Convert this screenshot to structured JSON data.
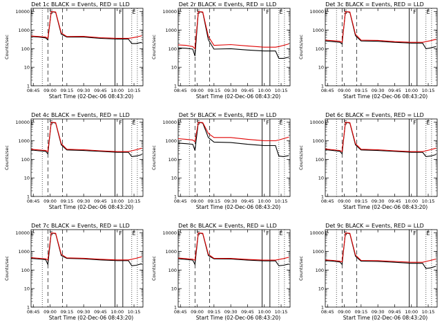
{
  "figure": {
    "xlabel": "Start Time (02-Dec-06 08:43:20)",
    "ylabel": "Counts/sec",
    "x_ticks": [
      "08:45",
      "09:00",
      "09:15",
      "09:30",
      "09:45",
      "10:00",
      "10:15"
    ],
    "y_ticks": [
      "1",
      "10",
      "100",
      "1000",
      "10000"
    ],
    "colors": {
      "events": "#000000",
      "lld": "#e00000"
    }
  },
  "chart_data": [
    {
      "type": "line",
      "title": "Det 1c BLACK = Events, RED = LLD",
      "markers": [
        "E",
        "S",
        "F",
        "E"
      ],
      "series": [
        {
          "name": "Events",
          "color": "#000000",
          "x": [
            "08:43",
            "08:50",
            "08:56",
            "08:58",
            "09:01",
            "09:05",
            "09:10",
            "09:15",
            "09:30",
            "09:45",
            "10:00",
            "10:10",
            "10:13",
            "10:17",
            "10:22"
          ],
          "y": [
            450,
            420,
            380,
            300,
            10000,
            9000,
            600,
            420,
            420,
            360,
            330,
            330,
            190,
            190,
            220
          ]
        },
        {
          "name": "LLD",
          "color": "#e00000",
          "x": [
            "08:43",
            "08:50",
            "08:56",
            "08:58",
            "09:01",
            "09:05",
            "09:10",
            "09:15",
            "09:30",
            "09:45",
            "10:00",
            "10:10",
            "10:13",
            "10:17",
            "10:22"
          ],
          "y": [
            480,
            450,
            420,
            360,
            10000,
            9500,
            700,
            450,
            460,
            390,
            360,
            360,
            380,
            420,
            500
          ]
        }
      ]
    },
    {
      "type": "line",
      "title": "Det 2r BLACK = Events, RED = LLD",
      "markers": [
        "E",
        "S",
        "F",
        "E"
      ],
      "series": [
        {
          "name": "Events",
          "color": "#000000",
          "x": [
            "08:43",
            "08:50",
            "08:56",
            "08:58",
            "09:01",
            "09:05",
            "09:10",
            "09:15",
            "09:30",
            "09:45",
            "10:00",
            "10:10",
            "10:13",
            "10:17",
            "10:22"
          ],
          "y": [
            110,
            105,
            95,
            40,
            10000,
            9000,
            300,
            95,
            100,
            85,
            75,
            75,
            30,
            30,
            35
          ]
        },
        {
          "name": "LLD",
          "color": "#e00000",
          "x": [
            "08:43",
            "08:50",
            "08:56",
            "08:58",
            "09:01",
            "09:05",
            "09:10",
            "09:15",
            "09:30",
            "09:45",
            "10:00",
            "10:10",
            "10:13",
            "10:17",
            "10:22"
          ],
          "y": [
            160,
            150,
            130,
            100,
            10000,
            9500,
            450,
            150,
            165,
            140,
            120,
            120,
            130,
            150,
            180
          ]
        }
      ]
    },
    {
      "type": "line",
      "title": "Det 3c BLACK = Events, RED = LLD",
      "markers": [
        "E",
        "S",
        "F",
        "E"
      ],
      "series": [
        {
          "name": "Events",
          "color": "#000000",
          "x": [
            "08:43",
            "08:50",
            "08:56",
            "08:58",
            "09:01",
            "09:05",
            "09:10",
            "09:15",
            "09:30",
            "09:45",
            "10:00",
            "10:10",
            "10:13",
            "10:17",
            "10:22"
          ],
          "y": [
            260,
            240,
            220,
            180,
            10000,
            9000,
            500,
            260,
            250,
            220,
            200,
            200,
            100,
            110,
            130
          ]
        },
        {
          "name": "LLD",
          "color": "#e00000",
          "x": [
            "08:43",
            "08:50",
            "08:56",
            "08:58",
            "09:01",
            "09:05",
            "09:10",
            "09:15",
            "09:30",
            "09:45",
            "10:00",
            "10:10",
            "10:13",
            "10:17",
            "10:22"
          ],
          "y": [
            290,
            270,
            250,
            220,
            10000,
            9500,
            600,
            290,
            280,
            240,
            220,
            220,
            240,
            270,
            320
          ]
        }
      ]
    },
    {
      "type": "line",
      "title": "Det 4c BLACK = Events, RED = LLD",
      "markers": [
        "E",
        "S",
        "F",
        "E"
      ],
      "series": [
        {
          "name": "Events",
          "color": "#000000",
          "x": [
            "08:43",
            "08:50",
            "08:56",
            "08:58",
            "09:01",
            "09:05",
            "09:10",
            "09:15",
            "09:30",
            "09:45",
            "10:00",
            "10:10",
            "10:13",
            "10:17",
            "10:22"
          ],
          "y": [
            320,
            290,
            270,
            200,
            10000,
            9000,
            600,
            320,
            300,
            270,
            240,
            240,
            140,
            150,
            180
          ]
        },
        {
          "name": "LLD",
          "color": "#e00000",
          "x": [
            "08:43",
            "08:50",
            "08:56",
            "08:58",
            "09:01",
            "09:05",
            "09:10",
            "09:15",
            "09:30",
            "09:45",
            "10:00",
            "10:10",
            "10:13",
            "10:17",
            "10:22"
          ],
          "y": [
            350,
            320,
            300,
            260,
            10000,
            9500,
            700,
            350,
            330,
            290,
            260,
            260,
            290,
            330,
            400
          ]
        }
      ]
    },
    {
      "type": "line",
      "title": "Det 5r BLACK = Events, RED = LLD",
      "markers": [
        "E",
        "S",
        "F",
        "E"
      ],
      "series": [
        {
          "name": "Events",
          "color": "#000000",
          "x": [
            "08:43",
            "08:50",
            "08:56",
            "08:58",
            "09:01",
            "09:05",
            "09:10",
            "09:15",
            "09:30",
            "09:45",
            "10:00",
            "10:10",
            "10:13",
            "10:17",
            "10:22"
          ],
          "y": [
            750,
            700,
            650,
            300,
            10000,
            9000,
            1500,
            850,
            800,
            650,
            550,
            550,
            150,
            140,
            160
          ]
        },
        {
          "name": "LLD",
          "color": "#e00000",
          "x": [
            "08:43",
            "08:50",
            "08:56",
            "08:58",
            "09:01",
            "09:05",
            "09:10",
            "09:15",
            "09:30",
            "09:45",
            "10:00",
            "10:10",
            "10:13",
            "10:17",
            "10:22"
          ],
          "y": [
            1300,
            1200,
            1100,
            900,
            10000,
            9500,
            2500,
            1500,
            1500,
            1200,
            1000,
            1000,
            1100,
            1300,
            1600
          ]
        }
      ]
    },
    {
      "type": "line",
      "title": "Det 6c BLACK = Events, RED = LLD",
      "markers": [
        "E",
        "S",
        "F",
        "E"
      ],
      "series": [
        {
          "name": "Events",
          "color": "#000000",
          "x": [
            "08:43",
            "08:50",
            "08:56",
            "08:58",
            "09:01",
            "09:05",
            "09:10",
            "09:15",
            "09:30",
            "09:45",
            "10:00",
            "10:10",
            "10:13",
            "10:17",
            "10:22"
          ],
          "y": [
            330,
            300,
            270,
            200,
            10000,
            9000,
            600,
            320,
            300,
            270,
            240,
            240,
            140,
            150,
            180
          ]
        },
        {
          "name": "LLD",
          "color": "#e00000",
          "x": [
            "08:43",
            "08:50",
            "08:56",
            "08:58",
            "09:01",
            "09:05",
            "09:10",
            "09:15",
            "09:30",
            "09:45",
            "10:00",
            "10:10",
            "10:13",
            "10:17",
            "10:22"
          ],
          "y": [
            360,
            330,
            300,
            260,
            10000,
            9500,
            700,
            350,
            330,
            290,
            260,
            260,
            290,
            330,
            400
          ]
        }
      ]
    },
    {
      "type": "line",
      "title": "Det 7c BLACK = Events, RED = LLD",
      "markers": [
        "E",
        "S",
        "F",
        "E"
      ],
      "series": [
        {
          "name": "Events",
          "color": "#000000",
          "x": [
            "08:43",
            "08:50",
            "08:56",
            "08:58",
            "09:01",
            "09:05",
            "09:10",
            "09:15",
            "09:30",
            "09:45",
            "10:00",
            "10:10",
            "10:13",
            "10:17",
            "10:22"
          ],
          "y": [
            420,
            390,
            360,
            200,
            10000,
            9000,
            600,
            420,
            400,
            350,
            320,
            320,
            170,
            180,
            220
          ]
        },
        {
          "name": "LLD",
          "color": "#e00000",
          "x": [
            "08:43",
            "08:50",
            "08:56",
            "08:58",
            "09:01",
            "09:05",
            "09:10",
            "09:15",
            "09:30",
            "09:45",
            "10:00",
            "10:10",
            "10:13",
            "10:17",
            "10:22"
          ],
          "y": [
            460,
            430,
            400,
            350,
            10000,
            9500,
            700,
            450,
            430,
            380,
            350,
            350,
            380,
            430,
            520
          ]
        }
      ]
    },
    {
      "type": "line",
      "title": "Det 8c BLACK = Events, RED = LLD",
      "markers": [
        "E",
        "S",
        "F",
        "E"
      ],
      "series": [
        {
          "name": "Events",
          "color": "#000000",
          "x": [
            "08:43",
            "08:50",
            "08:56",
            "08:58",
            "09:01",
            "09:05",
            "09:10",
            "09:15",
            "09:30",
            "09:45",
            "10:00",
            "10:10",
            "10:13",
            "10:17",
            "10:22"
          ],
          "y": [
            400,
            370,
            340,
            200,
            10000,
            9000,
            600,
            400,
            390,
            340,
            310,
            310,
            170,
            180,
            210
          ]
        },
        {
          "name": "LLD",
          "color": "#e00000",
          "x": [
            "08:43",
            "08:50",
            "08:56",
            "08:58",
            "09:01",
            "09:05",
            "09:10",
            "09:15",
            "09:30",
            "09:45",
            "10:00",
            "10:10",
            "10:13",
            "10:17",
            "10:22"
          ],
          "y": [
            440,
            410,
            380,
            340,
            10000,
            9500,
            700,
            430,
            420,
            370,
            340,
            340,
            370,
            410,
            490
          ]
        }
      ]
    },
    {
      "type": "line",
      "title": "Det 9c BLACK = Events, RED = LLD",
      "markers": [
        "E",
        "S",
        "F",
        "E"
      ],
      "series": [
        {
          "name": "Events",
          "color": "#000000",
          "x": [
            "08:43",
            "08:50",
            "08:56",
            "08:58",
            "09:01",
            "09:05",
            "09:10",
            "09:15",
            "09:30",
            "09:45",
            "10:00",
            "10:10",
            "10:13",
            "10:17",
            "10:22"
          ],
          "y": [
            320,
            300,
            270,
            200,
            10000,
            9000,
            550,
            300,
            290,
            260,
            230,
            230,
            120,
            130,
            160
          ]
        },
        {
          "name": "LLD",
          "color": "#e00000",
          "x": [
            "08:43",
            "08:50",
            "08:56",
            "08:58",
            "09:01",
            "09:05",
            "09:10",
            "09:15",
            "09:30",
            "09:45",
            "10:00",
            "10:10",
            "10:13",
            "10:17",
            "10:22"
          ],
          "y": [
            350,
            330,
            300,
            270,
            10000,
            9500,
            650,
            330,
            320,
            290,
            260,
            260,
            290,
            330,
            390
          ]
        }
      ]
    }
  ]
}
